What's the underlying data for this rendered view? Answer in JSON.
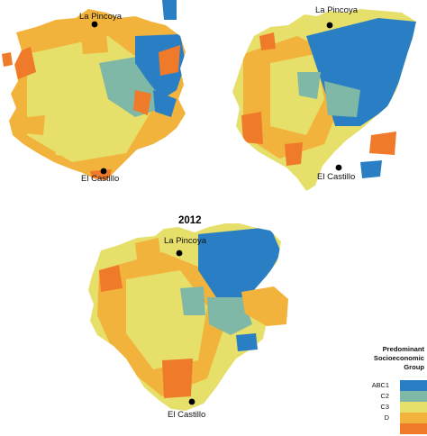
{
  "maps": [
    {
      "id": "top-left",
      "year": "",
      "places": [
        "La Pincoya",
        "El Castillo"
      ]
    },
    {
      "id": "top-right",
      "year": "",
      "places": [
        "La Pincoya",
        "El Castillo"
      ]
    },
    {
      "id": "bottom",
      "year": "2012",
      "places": [
        "La Pincoya",
        "El Castillo"
      ]
    }
  ],
  "legend": {
    "title_lines": [
      "Predominant",
      "Socioeconomic",
      "Group"
    ],
    "items": [
      {
        "label": "ABC1",
        "color": "#2a7fc4"
      },
      {
        "label": "C2",
        "color": "#7fb8a6"
      },
      {
        "label": "C3",
        "color": "#e6df6a"
      },
      {
        "label": "D",
        "color": "#f2b33c"
      },
      {
        "label": "",
        "color": "#ef7a2a"
      }
    ]
  },
  "palette": {
    "abc1": "#2a7fc4",
    "c2": "#7fb8a6",
    "c3": "#e6df6a",
    "d": "#f2b33c",
    "e": "#ef7a2a"
  }
}
